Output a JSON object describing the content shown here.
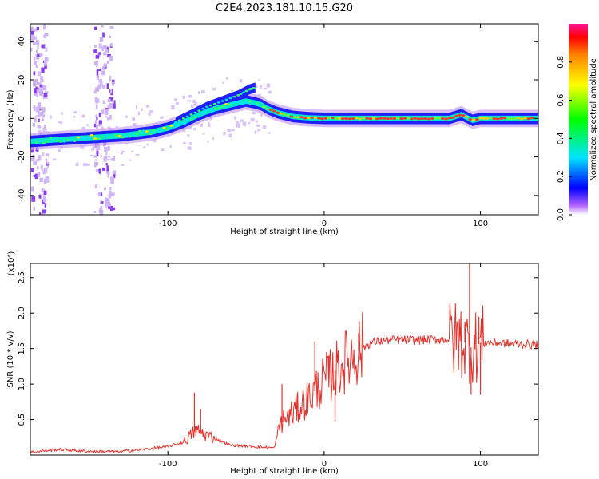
{
  "title": "C2E4.2023.181.10.15.G20",
  "chart_data": [
    {
      "type": "heatmap",
      "xlabel": "Height of straight line (km)",
      "ylabel": "Frequency (Hz)",
      "xlim": [
        -188,
        137
      ],
      "ylim": [
        -50,
        49
      ],
      "xticks": [
        -100,
        0,
        100
      ],
      "xtick_labels": [
        "-100",
        "0",
        "100"
      ],
      "yticks": [
        -40,
        -20,
        0,
        20,
        40
      ],
      "ytick_labels": [
        "-40",
        "-20",
        "0",
        "20",
        "40"
      ],
      "colorbar": {
        "label": "Normalized spectral amplitude",
        "range": [
          0,
          1
        ],
        "ticks": [
          0,
          0.2,
          0.4,
          0.6,
          0.8
        ],
        "tick_labels": [
          "0.0",
          "0.2",
          "0.4",
          "0.6",
          "0.8"
        ],
        "colormap": "rainbow"
      },
      "ridge": {
        "x": [
          -188,
          -170,
          -150,
          -130,
          -110,
          -100,
          -90,
          -80,
          -70,
          -60,
          -50,
          -44,
          -40,
          -36,
          -30,
          -20,
          -10,
          0,
          20,
          50,
          80,
          88,
          90,
          95,
          100,
          120,
          137
        ],
        "y": [
          -12,
          -11,
          -10,
          -9,
          -7,
          -5,
          -2,
          2,
          5,
          7,
          9,
          8,
          7,
          5,
          3,
          1,
          0.3,
          0,
          0,
          0,
          0,
          2,
          1,
          -1,
          0,
          0,
          0
        ]
      },
      "upper_branch": {
        "x": [
          -95,
          -85,
          -75,
          -65,
          -55,
          -48,
          -44
        ],
        "y": [
          -2,
          2,
          6,
          9,
          12,
          15,
          16
        ]
      },
      "interference_bands_km": [
        [
          -188,
          -178
        ],
        [
          -148,
          -135
        ]
      ],
      "grid": false
    },
    {
      "type": "line",
      "xlabel": "Height of straight line (km)",
      "ylabel": "SNR (10 * v/v)",
      "yscale_label": "(x10⁴)",
      "xlim": [
        -188,
        137
      ],
      "ylim": [
        0,
        2.7
      ],
      "xticks": [
        -100,
        0,
        100
      ],
      "xtick_labels": [
        "-100",
        "0",
        "100"
      ],
      "yticks": [
        0.5,
        1.0,
        1.5,
        2.0,
        2.5
      ],
      "ytick_labels": [
        "0.5",
        "1.0",
        "1.5",
        "2.0",
        "2.5"
      ],
      "series": [
        {
          "color": "#e8302a",
          "envelope": {
            "x": [
              -188,
              -170,
              -150,
              -130,
              -115,
              -100,
              -90,
              -82,
              -75,
              -60,
              -45,
              -32,
              -28,
              -20,
              -10,
              0,
              10,
              20,
              30,
              40,
              60,
              80,
              88,
              92,
              95,
              100,
              110,
              137
            ],
            "y": [
              0.04,
              0.08,
              0.05,
              0.05,
              0.08,
              0.12,
              0.18,
              0.35,
              0.28,
              0.14,
              0.12,
              0.1,
              0.45,
              0.6,
              0.8,
              1.05,
              1.25,
              1.45,
              1.58,
              1.62,
              1.62,
              1.63,
              1.62,
              1.55,
              1.5,
              1.58,
              1.58,
              1.55
            ]
          },
          "spikes": [
            {
              "x": -83,
              "y": 0.88
            },
            {
              "x": -79,
              "y": 0.65
            },
            {
              "x": -27,
              "y": 1.0
            },
            {
              "x": -6,
              "y": 1.6
            },
            {
              "x": 3,
              "y": 1.4
            },
            {
              "x": 7,
              "y": 0.48
            },
            {
              "x": 22,
              "y": 1.72
            },
            {
              "x": 90,
              "y": 1.88
            },
            {
              "x": 93,
              "y": 2.7
            },
            {
              "x": 94,
              "y": 0.85
            },
            {
              "x": 99,
              "y": 1.95
            },
            {
              "x": 100,
              "y": 0.85
            }
          ]
        }
      ],
      "grid": false
    }
  ]
}
